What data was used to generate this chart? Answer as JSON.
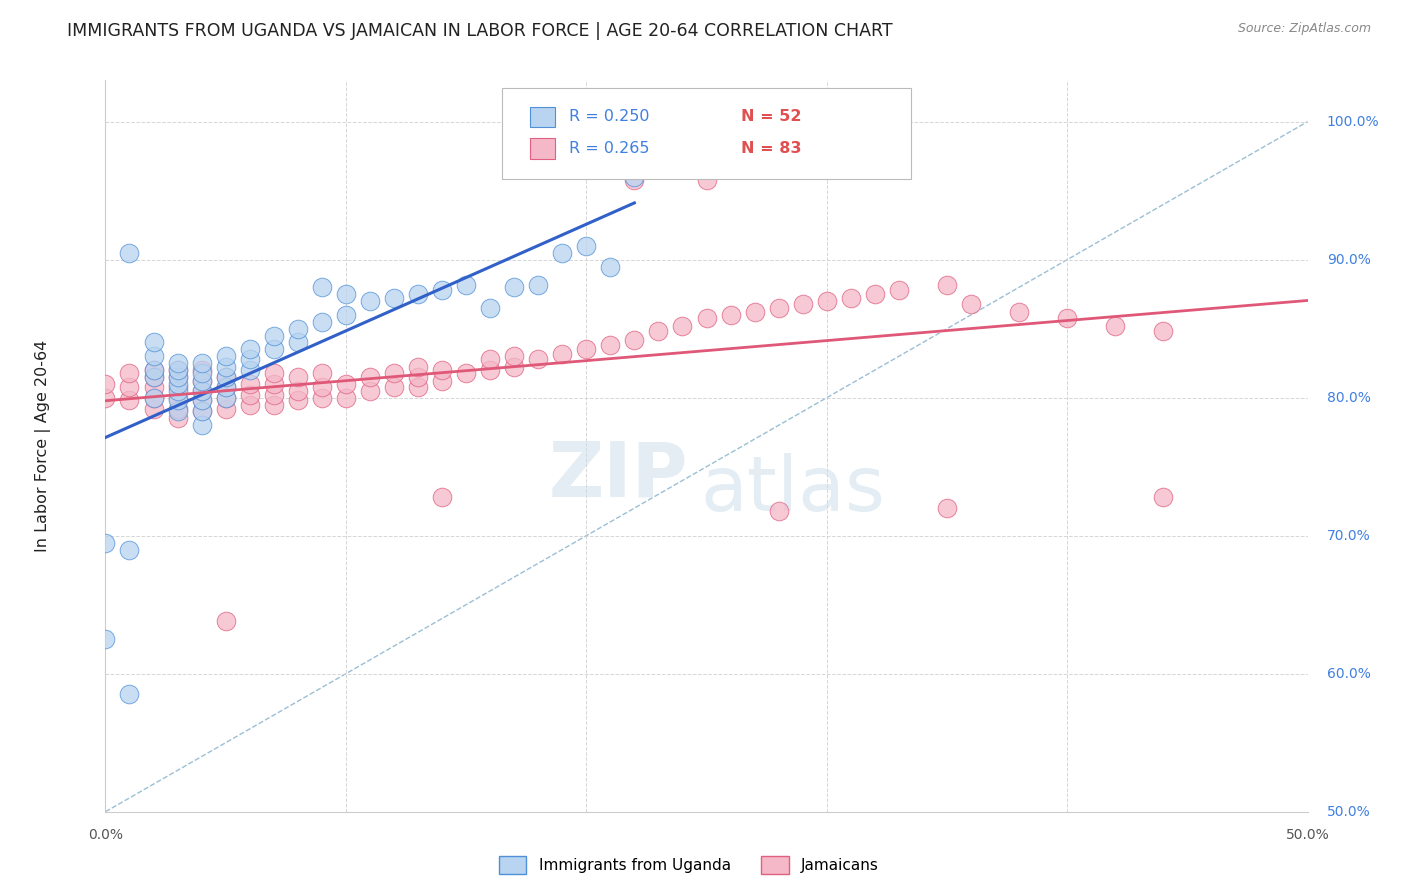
{
  "title": "IMMIGRANTS FROM UGANDA VS JAMAICAN IN LABOR FORCE | AGE 20-64 CORRELATION CHART",
  "source": "Source: ZipAtlas.com",
  "ylabel": "In Labor Force | Age 20-64",
  "xlim": [
    0.0,
    0.5
  ],
  "ylim": [
    0.5,
    1.03
  ],
  "xticks": [
    0.0,
    0.1,
    0.2,
    0.3,
    0.4,
    0.5
  ],
  "xtick_labels_show": [
    "0.0%",
    "50.0%"
  ],
  "xtick_labels_pos": [
    0.0,
    0.5
  ],
  "yticks": [
    0.5,
    0.6,
    0.7,
    0.8,
    0.9,
    1.0
  ],
  "ytick_labels_right": [
    "50.0%",
    "60.0%",
    "70.0%",
    "80.0%",
    "90.0%",
    "100.0%"
  ],
  "r_uganda": 0.25,
  "n_uganda": 52,
  "r_jamaican": 0.265,
  "n_jamaican": 83,
  "uganda_fill_color": "#b8d4f0",
  "uganda_edge_color": "#5090d8",
  "jamaican_fill_color": "#f4b8c8",
  "jamaican_edge_color": "#e06080",
  "uganda_line_color": "#3060c8",
  "jamaican_line_color": "#e05878",
  "diagonal_color": "#90b8d0",
  "background_color": "#ffffff",
  "grid_color": "#cccccc",
  "title_color": "#222222",
  "label_blue_color": "#4080e0",
  "label_red_color": "#e05050",
  "watermark_zip_color": "#c8dce8",
  "watermark_atlas_color": "#c8dce8",
  "uganda_x": [
    0.0,
    0.0,
    0.01,
    0.01,
    0.02,
    0.02,
    0.02,
    0.02,
    0.02,
    0.03,
    0.03,
    0.03,
    0.03,
    0.03,
    0.03,
    0.03,
    0.04,
    0.04,
    0.04,
    0.04,
    0.04,
    0.04,
    0.04,
    0.05,
    0.05,
    0.05,
    0.05,
    0.05,
    0.06,
    0.06,
    0.06,
    0.07,
    0.07,
    0.08,
    0.08,
    0.09,
    0.09,
    0.1,
    0.1,
    0.11,
    0.12,
    0.13,
    0.14,
    0.15,
    0.16,
    0.17,
    0.18,
    0.19,
    0.2,
    0.21,
    0.22,
    0.01
  ],
  "uganda_y": [
    0.695,
    0.625,
    0.905,
    0.69,
    0.8,
    0.815,
    0.82,
    0.83,
    0.84,
    0.79,
    0.798,
    0.805,
    0.81,
    0.815,
    0.82,
    0.825,
    0.78,
    0.79,
    0.798,
    0.805,
    0.812,
    0.818,
    0.825,
    0.8,
    0.808,
    0.815,
    0.822,
    0.83,
    0.82,
    0.828,
    0.835,
    0.835,
    0.845,
    0.84,
    0.85,
    0.855,
    0.88,
    0.86,
    0.875,
    0.87,
    0.872,
    0.875,
    0.878,
    0.882,
    0.865,
    0.88,
    0.882,
    0.905,
    0.91,
    0.895,
    0.96,
    0.585
  ],
  "jamaican_x": [
    0.0,
    0.0,
    0.01,
    0.01,
    0.01,
    0.02,
    0.02,
    0.02,
    0.02,
    0.02,
    0.03,
    0.03,
    0.03,
    0.03,
    0.03,
    0.03,
    0.04,
    0.04,
    0.04,
    0.04,
    0.04,
    0.05,
    0.05,
    0.05,
    0.05,
    0.06,
    0.06,
    0.06,
    0.07,
    0.07,
    0.07,
    0.07,
    0.08,
    0.08,
    0.08,
    0.09,
    0.09,
    0.09,
    0.1,
    0.1,
    0.11,
    0.11,
    0.12,
    0.12,
    0.13,
    0.13,
    0.13,
    0.14,
    0.14,
    0.15,
    0.16,
    0.16,
    0.17,
    0.17,
    0.18,
    0.19,
    0.2,
    0.21,
    0.22,
    0.23,
    0.24,
    0.25,
    0.26,
    0.27,
    0.28,
    0.29,
    0.3,
    0.31,
    0.32,
    0.33,
    0.35,
    0.36,
    0.38,
    0.4,
    0.42,
    0.44,
    0.05,
    0.14,
    0.22,
    0.25,
    0.28,
    0.35,
    0.44
  ],
  "jamaican_y": [
    0.8,
    0.81,
    0.798,
    0.808,
    0.818,
    0.792,
    0.8,
    0.808,
    0.815,
    0.82,
    0.785,
    0.792,
    0.8,
    0.808,
    0.815,
    0.82,
    0.79,
    0.798,
    0.805,
    0.812,
    0.82,
    0.792,
    0.8,
    0.808,
    0.815,
    0.795,
    0.802,
    0.81,
    0.795,
    0.802,
    0.81,
    0.818,
    0.798,
    0.805,
    0.815,
    0.8,
    0.808,
    0.818,
    0.8,
    0.81,
    0.805,
    0.815,
    0.808,
    0.818,
    0.808,
    0.815,
    0.822,
    0.812,
    0.82,
    0.818,
    0.82,
    0.828,
    0.822,
    0.83,
    0.828,
    0.832,
    0.835,
    0.838,
    0.842,
    0.848,
    0.852,
    0.858,
    0.86,
    0.862,
    0.865,
    0.868,
    0.87,
    0.872,
    0.875,
    0.878,
    0.882,
    0.868,
    0.862,
    0.858,
    0.852,
    0.848,
    0.638,
    0.728,
    0.958,
    0.958,
    0.718,
    0.72,
    0.728
  ]
}
